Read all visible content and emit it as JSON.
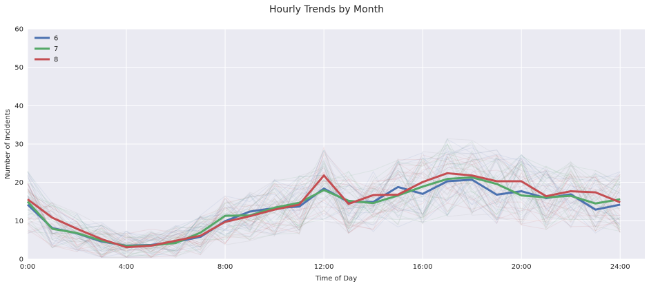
{
  "chart_data": {
    "type": "line",
    "title": "Hourly Trends by Month",
    "xlabel": "Time of Day",
    "ylabel": "Number of Incidents",
    "xlim": [
      0,
      25
    ],
    "ylim": [
      0,
      60
    ],
    "x_ticks": [
      0,
      4,
      8,
      12,
      16,
      20,
      24
    ],
    "x_tick_labels": [
      "0:00",
      "4:00",
      "8:00",
      "12:00",
      "16:00",
      "20:00",
      "24:00"
    ],
    "y_ticks": [
      0,
      10,
      20,
      30,
      40,
      50,
      60
    ],
    "y_tick_labels": [
      "0",
      "10",
      "20",
      "30",
      "40",
      "50",
      "60"
    ],
    "grid": true,
    "legend_position": "top-left",
    "x": [
      0,
      1,
      2,
      3,
      4,
      5,
      6,
      7,
      8,
      9,
      10,
      11,
      12,
      13,
      14,
      15,
      16,
      17,
      18,
      19,
      20,
      21,
      22,
      23,
      24
    ],
    "series": [
      {
        "name": "6",
        "color": "#4c72b0",
        "values": [
          14.2,
          8.1,
          6.7,
          4.6,
          3.5,
          3.7,
          4.5,
          5.8,
          9.9,
          12.4,
          13.3,
          13.7,
          18.4,
          14.9,
          14.9,
          18.8,
          17.0,
          20.3,
          20.7,
          16.8,
          17.7,
          15.9,
          16.9,
          12.9,
          14.2
        ]
      },
      {
        "name": "7",
        "color": "#55a868",
        "values": [
          15.0,
          7.9,
          6.8,
          4.8,
          3.4,
          3.6,
          4.2,
          6.9,
          11.3,
          11.4,
          13.4,
          14.7,
          18.0,
          15.2,
          14.6,
          16.6,
          18.9,
          20.9,
          21.3,
          19.6,
          16.6,
          16.1,
          16.5,
          14.5,
          15.6
        ]
      },
      {
        "name": "8",
        "color": "#c44e52",
        "values": [
          15.6,
          10.8,
          7.9,
          5.2,
          3.1,
          3.5,
          4.8,
          6.1,
          9.7,
          11.2,
          12.9,
          14.2,
          21.8,
          14.4,
          16.7,
          16.8,
          20.1,
          22.4,
          21.8,
          20.3,
          20.3,
          16.4,
          17.7,
          17.4,
          14.8
        ]
      }
    ],
    "background_series_count": 60
  }
}
